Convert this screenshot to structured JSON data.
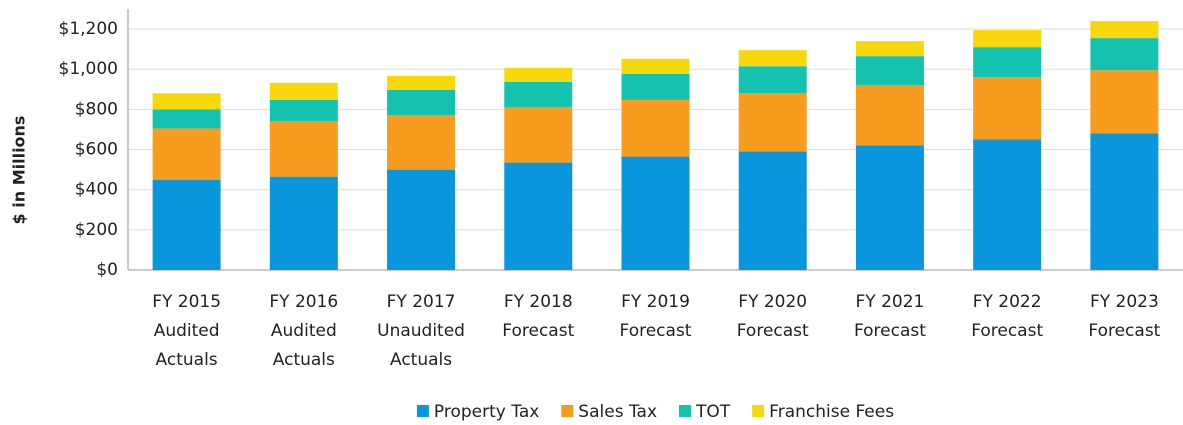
{
  "chart_data": {
    "type": "stacked_bar",
    "y_label": "$ in Millions",
    "categories": [
      [
        "FY 2015",
        "Audited",
        "Actuals"
      ],
      [
        "FY 2016",
        "Audited",
        "Actuals"
      ],
      [
        "FY 2017",
        "Unaudited",
        "Actuals"
      ],
      [
        "FY 2018",
        "Forecast"
      ],
      [
        "FY 2019",
        "Forecast"
      ],
      [
        "FY 2020",
        "Forecast"
      ],
      [
        "FY 2021",
        "Forecast"
      ],
      [
        "FY 2022",
        "Forecast"
      ],
      [
        "FY 2023",
        "Forecast"
      ]
    ],
    "series": [
      {
        "name": "Property Tax",
        "color": "#0a96dc",
        "values": [
          450,
          465,
          500,
          535,
          565,
          590,
          620,
          650,
          680
        ]
      },
      {
        "name": "Sales Tax",
        "color": "#f79c1e",
        "values": [
          255,
          277,
          272,
          277,
          282,
          290,
          300,
          310,
          315
        ]
      },
      {
        "name": "TOT",
        "color": "#14c2b0",
        "values": [
          95,
          105,
          125,
          125,
          130,
          135,
          145,
          150,
          160
        ]
      },
      {
        "name": "Franchise Fees",
        "color": "#f8d80c",
        "values": [
          80,
          85,
          70,
          70,
          75,
          80,
          75,
          85,
          85
        ]
      }
    ],
    "ylim": [
      0,
      1300
    ],
    "yticks": [
      {
        "value": 0,
        "label": "$0"
      },
      {
        "value": 200,
        "label": "$200"
      },
      {
        "value": 400,
        "label": "$400"
      },
      {
        "value": 600,
        "label": "$600"
      },
      {
        "value": 800,
        "label": "$800"
      },
      {
        "value": 1000,
        "label": "$1,000"
      },
      {
        "value": 1200,
        "label": "$1,200"
      }
    ],
    "grid": true,
    "legend": "bottom"
  }
}
